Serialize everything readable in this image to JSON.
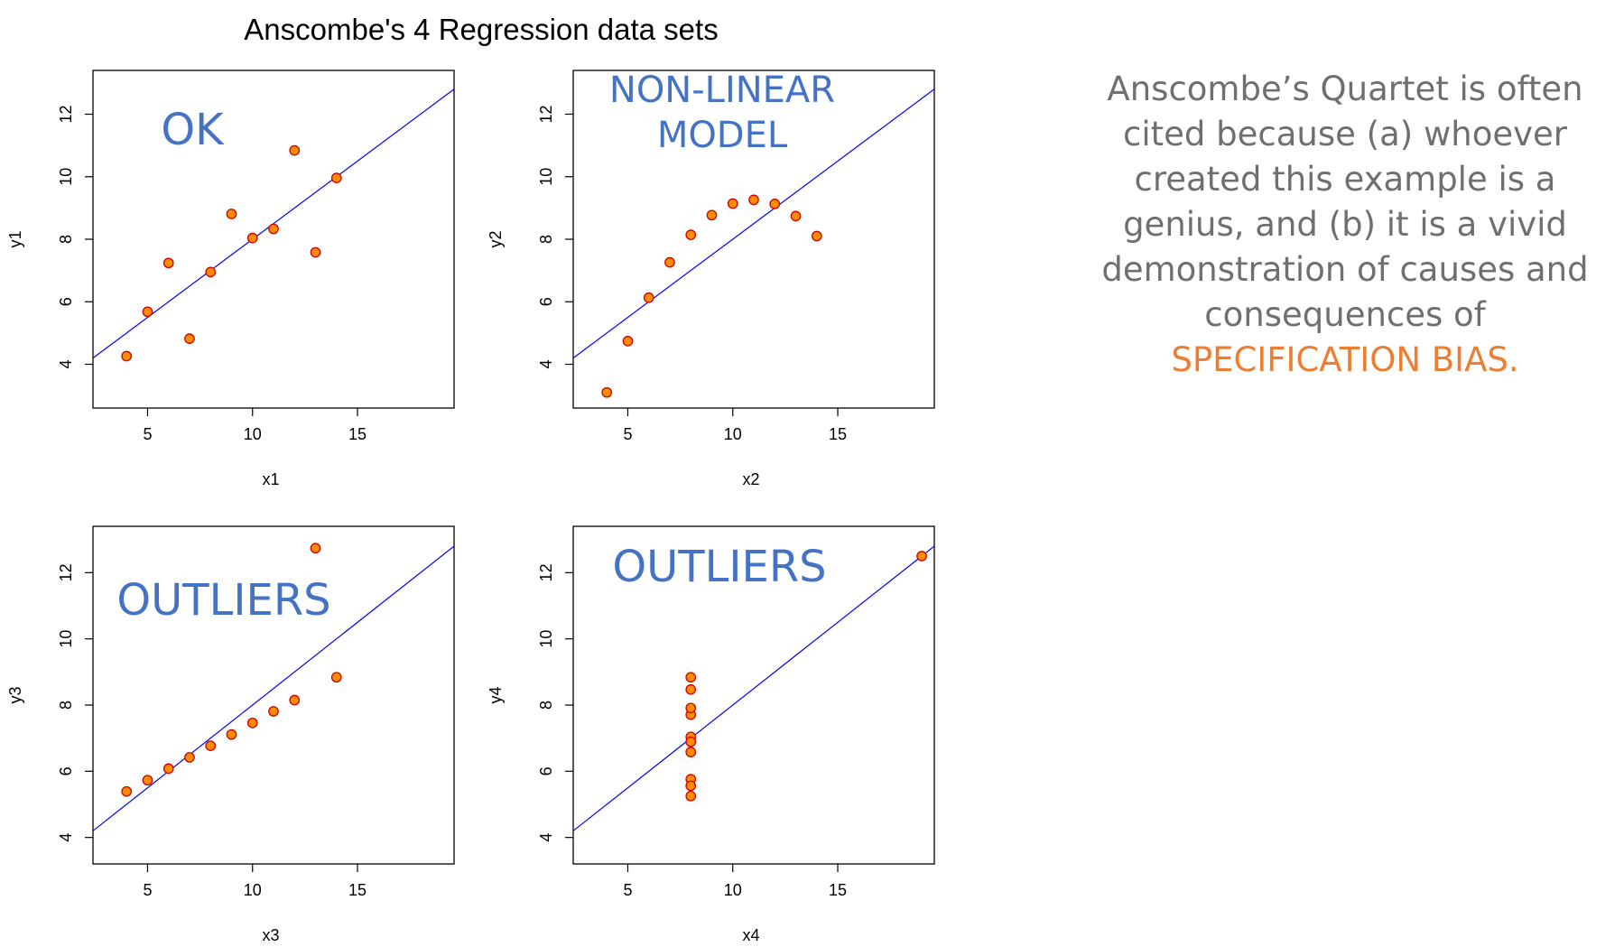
{
  "caption": {
    "text": "Anscombe’s Quartet is often cited because (a) whoever created this example is a genius, and (b) it is a vivid demonstration of causes and consequences of",
    "highlight": "SPECIFICATION BIAS.",
    "text_color": "#6f6f6f",
    "highlight_color": "#ed7d31"
  },
  "chart_data": {
    "title": "Anscombe's 4 Regression data sets",
    "type": "scatter",
    "point_fill": "#ff8c00",
    "point_stroke": "#cc0000",
    "line_color": "#0000ff",
    "annotation_color": "#4472c4",
    "panels": [
      {
        "type": "scatter",
        "xlabel": "x1",
        "ylabel": "y1",
        "xlim": [
          2.4,
          19.6
        ],
        "ylim": [
          2.6,
          13.4
        ],
        "xticks": [
          5,
          10,
          15
        ],
        "yticks": [
          4,
          6,
          8,
          10,
          12
        ],
        "annotation": [
          "OK"
        ],
        "fit": {
          "intercept": 3.0,
          "slope": 0.5
        },
        "x": [
          10,
          8,
          13,
          9,
          11,
          14,
          6,
          4,
          12,
          7,
          5
        ],
        "y": [
          8.04,
          6.95,
          7.58,
          8.81,
          8.33,
          9.96,
          7.24,
          4.26,
          10.84,
          4.82,
          5.68
        ]
      },
      {
        "type": "scatter",
        "xlabel": "x2",
        "ylabel": "y2",
        "xlim": [
          2.4,
          19.6
        ],
        "ylim": [
          2.6,
          13.4
        ],
        "xticks": [
          5,
          10,
          15
        ],
        "yticks": [
          4,
          6,
          8,
          10,
          12
        ],
        "annotation": [
          "NON-LINEAR",
          "MODEL"
        ],
        "fit": {
          "intercept": 3.0,
          "slope": 0.5
        },
        "x": [
          10,
          8,
          13,
          9,
          11,
          14,
          6,
          4,
          12,
          7,
          5
        ],
        "y": [
          9.14,
          8.14,
          8.74,
          8.77,
          9.26,
          8.1,
          6.13,
          3.1,
          9.13,
          7.26,
          4.74
        ]
      },
      {
        "type": "scatter",
        "xlabel": "x3",
        "ylabel": "y3",
        "xlim": [
          2.4,
          19.6
        ],
        "ylim": [
          3.2,
          13.4
        ],
        "xticks": [
          5,
          10,
          15
        ],
        "yticks": [
          4,
          6,
          8,
          10,
          12
        ],
        "annotation": [
          "OUTLIERS"
        ],
        "fit": {
          "intercept": 3.0,
          "slope": 0.5
        },
        "x": [
          10,
          8,
          13,
          9,
          11,
          14,
          6,
          4,
          12,
          7,
          5
        ],
        "y": [
          7.46,
          6.77,
          12.74,
          7.11,
          7.81,
          8.84,
          6.08,
          5.39,
          8.15,
          6.42,
          5.73
        ]
      },
      {
        "type": "scatter",
        "xlabel": "x4",
        "ylabel": "y4",
        "xlim": [
          2.4,
          19.6
        ],
        "ylim": [
          3.2,
          13.4
        ],
        "xticks": [
          5,
          10,
          15
        ],
        "yticks": [
          4,
          6,
          8,
          10,
          12
        ],
        "annotation": [
          "OUTLIERS"
        ],
        "fit": {
          "intercept": 3.0,
          "slope": 0.5
        },
        "x": [
          8,
          8,
          8,
          8,
          8,
          8,
          8,
          19,
          8,
          8,
          8
        ],
        "y": [
          6.58,
          5.76,
          7.71,
          8.84,
          8.47,
          7.04,
          5.25,
          12.5,
          5.56,
          7.91,
          6.89
        ]
      }
    ]
  }
}
